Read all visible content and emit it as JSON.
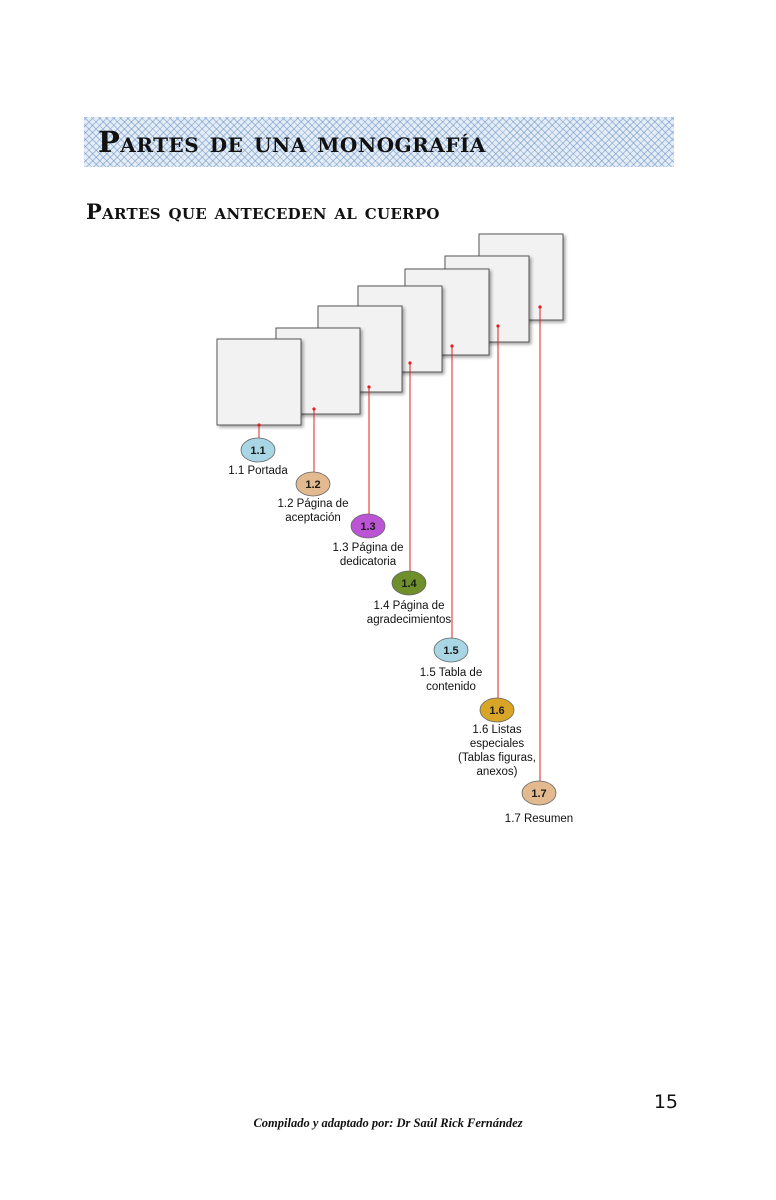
{
  "header": {
    "title": "Partes de una monografía",
    "subtitle": "Partes que anteceden al cuerpo"
  },
  "diagram": {
    "nodes": [
      {
        "badge": "1.1",
        "label_lines": [
          "1.1 Portada"
        ],
        "color": "#a9d6e4"
      },
      {
        "badge": "1.2",
        "label_lines": [
          "1.2 Página de",
          "aceptación"
        ],
        "color": "#e3b98f"
      },
      {
        "badge": "1.3",
        "label_lines": [
          "1.3 Página de",
          "dedicatoria"
        ],
        "color": "#bb55d6"
      },
      {
        "badge": "1.4",
        "label_lines": [
          "1.4 Página de",
          "agradecimientos"
        ],
        "color": "#6f8f2a"
      },
      {
        "badge": "1.5",
        "label_lines": [
          "1.5 Tabla de",
          "contenido"
        ],
        "color": "#a9d6e4"
      },
      {
        "badge": "1.6",
        "label_lines": [
          "1.6 Listas",
          "especiales",
          "(Tablas figuras,",
          "anexos)"
        ],
        "color": "#d9a526"
      },
      {
        "badge": "1.7",
        "label_lines": [
          "1.7 Resumen"
        ],
        "color": "#e3b98f"
      }
    ],
    "connector_color": "#e02020"
  },
  "footer": {
    "page_number": "15",
    "credit": "Compilado y adaptado por: Dr Saúl Rick Fernández"
  }
}
